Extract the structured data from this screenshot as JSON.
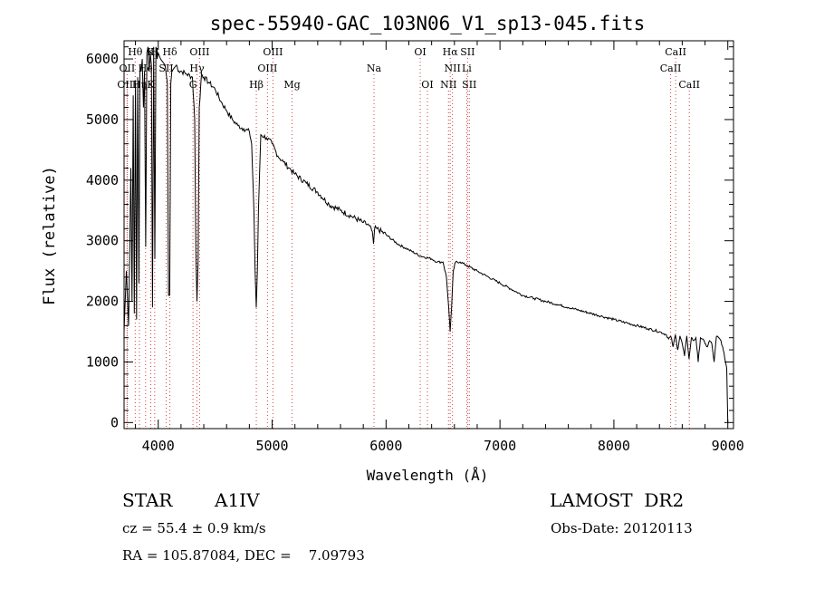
{
  "chart_data": {
    "type": "line",
    "title": "spec-55940-GAC_103N06_V1_sp13-045.fits",
    "xlabel": "Wavelength (Å)",
    "ylabel": "Flux (relative)",
    "xlim": [
      3700,
      9050
    ],
    "ylim": [
      -100,
      6300
    ],
    "xticks": [
      4000,
      5000,
      6000,
      7000,
      8000,
      9000
    ],
    "yticks": [
      0,
      1000,
      2000,
      3000,
      4000,
      5000,
      6000
    ],
    "series": [
      {
        "name": "flux",
        "x": [
          3700,
          3720,
          3740,
          3760,
          3770,
          3780,
          3790,
          3800,
          3810,
          3820,
          3830,
          3840,
          3850,
          3860,
          3870,
          3880,
          3890,
          3900,
          3910,
          3920,
          3930,
          3940,
          3950,
          3960,
          3970,
          3980,
          3990,
          4000,
          4020,
          4040,
          4060,
          4080,
          4090,
          4101,
          4110,
          4120,
          4140,
          4160,
          4180,
          4200,
          4250,
          4300,
          4320,
          4330,
          4340,
          4350,
          4360,
          4380,
          4400,
          4450,
          4500,
          4550,
          4600,
          4650,
          4700,
          4750,
          4800,
          4820,
          4840,
          4850,
          4861,
          4870,
          4880,
          4900,
          4950,
          5000,
          5050,
          5100,
          5150,
          5200,
          5300,
          5400,
          5500,
          5600,
          5700,
          5800,
          5850,
          5880,
          5890,
          5900,
          5920,
          6000,
          6100,
          6200,
          6300,
          6400,
          6450,
          6500,
          6530,
          6550,
          6563,
          6575,
          6590,
          6610,
          6650,
          6700,
          6800,
          6900,
          7000,
          7100,
          7200,
          7300,
          7400,
          7500,
          7600,
          7700,
          7800,
          7900,
          8000,
          8100,
          8200,
          8300,
          8400,
          8460,
          8480,
          8500,
          8520,
          8540,
          8560,
          8580,
          8600,
          8620,
          8640,
          8660,
          8680,
          8700,
          8720,
          8740,
          8760,
          8780,
          8800,
          8820,
          8840,
          8860,
          8880,
          8900,
          8920,
          8940,
          8960,
          8980,
          8990,
          9000
        ],
        "values": [
          1500,
          2500,
          1600,
          4200,
          2000,
          5400,
          1800,
          5600,
          1700,
          5700,
          2300,
          5900,
          5800,
          6000,
          5200,
          5800,
          2900,
          6100,
          6200,
          5800,
          6100,
          5900,
          1900,
          6200,
          2700,
          6200,
          6000,
          6100,
          6000,
          5950,
          5900,
          5600,
          2100,
          2100,
          5600,
          5800,
          5850,
          5900,
          5800,
          5800,
          5750,
          5700,
          5000,
          2800,
          2000,
          2700,
          5200,
          5750,
          5700,
          5600,
          5500,
          5300,
          5150,
          5000,
          4900,
          4850,
          4800,
          4600,
          3500,
          2500,
          1900,
          2500,
          3500,
          4750,
          4700,
          4600,
          4400,
          4300,
          4200,
          4100,
          3950,
          3800,
          3600,
          3500,
          3400,
          3300,
          3250,
          3150,
          2950,
          3200,
          3200,
          3100,
          2950,
          2850,
          2750,
          2700,
          2650,
          2650,
          2400,
          1900,
          1500,
          1900,
          2500,
          2650,
          2650,
          2600,
          2500,
          2400,
          2300,
          2200,
          2100,
          2050,
          2000,
          1950,
          1900,
          1850,
          1800,
          1750,
          1700,
          1650,
          1600,
          1550,
          1500,
          1450,
          1380,
          1420,
          1250,
          1450,
          1200,
          1430,
          1300,
          1100,
          1430,
          1050,
          1400,
          1350,
          1400,
          1000,
          1400,
          1380,
          1300,
          1250,
          1350,
          1300,
          1000,
          1420,
          1400,
          1350,
          1200,
          1000,
          900,
          0
        ]
      }
    ],
    "lines": [
      {
        "label": "Hθ",
        "x": 3798,
        "row": 0
      },
      {
        "label": "OII",
        "x": 3727,
        "row": 1
      },
      {
        "label": "OIII",
        "x": 3727,
        "row": 2
      },
      {
        "label": "Hη",
        "x": 3835,
        "row": 2
      },
      {
        "label": "He",
        "x": 3889,
        "row": 1
      },
      {
        "label": "K",
        "x": 3934,
        "row": 0
      },
      {
        "label": "H",
        "x": 3969,
        "row": 0
      },
      {
        "label": "SII",
        "x": 4070,
        "row": 1
      },
      {
        "label": "K",
        "x": 3934,
        "row": 2
      },
      {
        "label": "Hδ",
        "x": 4102,
        "row": 0
      },
      {
        "label": "OIII",
        "x": 4363,
        "row": 0
      },
      {
        "label": "Hγ",
        "x": 4340,
        "row": 1
      },
      {
        "label": "G",
        "x": 4305,
        "row": 2
      },
      {
        "label": "OIII",
        "x": 5007,
        "row": 0
      },
      {
        "label": "OIII",
        "x": 4959,
        "row": 1
      },
      {
        "label": "Hβ",
        "x": 4861,
        "row": 2
      },
      {
        "label": "Mg",
        "x": 5175,
        "row": 2
      },
      {
        "label": "Na",
        "x": 5894,
        "row": 1
      },
      {
        "label": "OI",
        "x": 6300,
        "row": 0
      },
      {
        "label": "OI",
        "x": 6363,
        "row": 2
      },
      {
        "label": "Hα",
        "x": 6563,
        "row": 0
      },
      {
        "label": "SII",
        "x": 6716,
        "row": 0
      },
      {
        "label": "NII",
        "x": 6583,
        "row": 1
      },
      {
        "label": "Li",
        "x": 6708,
        "row": 1
      },
      {
        "label": "NII",
        "x": 6548,
        "row": 2
      },
      {
        "label": "SII",
        "x": 6731,
        "row": 2
      },
      {
        "label": "CaII",
        "x": 8542,
        "row": 0
      },
      {
        "label": "CaII",
        "x": 8498,
        "row": 1
      },
      {
        "label": "CaII",
        "x": 8662,
        "row": 2
      }
    ]
  },
  "info": {
    "object": "STAR",
    "subclass": "A1IV",
    "survey": "LAMOST  DR2",
    "cz": "cz = 55.4 ± 0.9 km/s",
    "obs_date": "Obs-Date: 20120113",
    "radec": "RA = 105.87084, DEC =    7.09793"
  }
}
